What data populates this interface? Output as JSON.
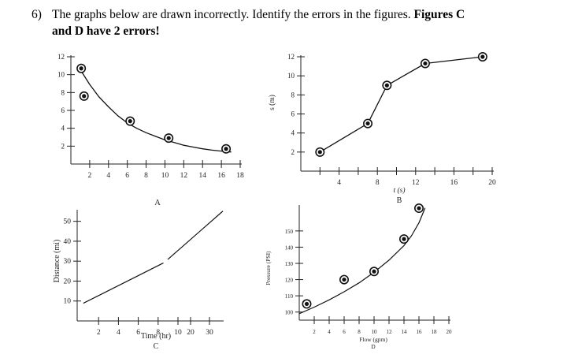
{
  "question": {
    "number": "6)",
    "text_plain": "The graphs below are drawn incorrectly. Identify the errors in the figures.",
    "text_bold_1": "Figures C",
    "text_bold_2": "and D have 2 errors!"
  },
  "chart_data": [
    {
      "id": "A",
      "type": "scatter",
      "title": "A",
      "xlabel": "",
      "ylabel": "",
      "xlim": [
        0,
        18
      ],
      "ylim": [
        0,
        12
      ],
      "x_ticks": [
        2,
        4,
        6,
        8,
        10,
        12,
        14,
        16,
        18
      ],
      "y_ticks": [
        2,
        4,
        6,
        8,
        10,
        12
      ],
      "points": [
        {
          "x": 1.1,
          "y": 10.7
        },
        {
          "x": 1.4,
          "y": 7.6
        },
        {
          "x": 6.3,
          "y": 4.8
        },
        {
          "x": 10.4,
          "y": 2.9
        },
        {
          "x": 16.5,
          "y": 1.7
        }
      ],
      "curve": [
        {
          "x": 1.1,
          "y": 10.4
        },
        {
          "x": 2,
          "y": 8.9
        },
        {
          "x": 3,
          "y": 7.5
        },
        {
          "x": 4,
          "y": 6.4
        },
        {
          "x": 5,
          "y": 5.4
        },
        {
          "x": 6,
          "y": 4.6
        },
        {
          "x": 7,
          "y": 4.0
        },
        {
          "x": 8,
          "y": 3.5
        },
        {
          "x": 9,
          "y": 3.1
        },
        {
          "x": 10,
          "y": 2.7
        },
        {
          "x": 11,
          "y": 2.4
        },
        {
          "x": 12,
          "y": 2.1
        },
        {
          "x": 13,
          "y": 1.9
        },
        {
          "x": 14,
          "y": 1.7
        },
        {
          "x": 15,
          "y": 1.55
        },
        {
          "x": 16,
          "y": 1.45
        },
        {
          "x": 17,
          "y": 1.35
        }
      ]
    },
    {
      "id": "B",
      "type": "line",
      "title": "B",
      "xlabel": "t (s)",
      "ylabel": "s (m)",
      "xlim": [
        0,
        20
      ],
      "ylim": [
        0,
        12
      ],
      "x_ticks": [
        2,
        4,
        6,
        8,
        10,
        12,
        14,
        16,
        18,
        20
      ],
      "x_tick_labels_shown": [
        4,
        8,
        12,
        16,
        20
      ],
      "y_ticks": [
        2,
        4,
        6,
        8,
        10,
        12
      ],
      "points": [
        {
          "x": 2,
          "y": 2
        },
        {
          "x": 7,
          "y": 5
        },
        {
          "x": 9,
          "y": 9
        },
        {
          "x": 13,
          "y": 11.3
        },
        {
          "x": 19,
          "y": 12
        }
      ]
    },
    {
      "id": "C",
      "type": "line",
      "title": "C",
      "xlabel": "Time (hr)",
      "ylabel": "Distance (mi)",
      "ylim": [
        0,
        55
      ],
      "x_tick_labels": [
        "2",
        "4",
        "6",
        "8",
        "10",
        "20",
        "30"
      ],
      "y_ticks": [
        10,
        20,
        30,
        40,
        50
      ],
      "segments": [
        [
          {
            "x": 0.5,
            "y": 9
          },
          {
            "x": 8.5,
            "y": 29
          }
        ],
        [
          {
            "x": 9.0,
            "y": 31
          },
          {
            "x": 14.5,
            "y": 55
          }
        ]
      ]
    },
    {
      "id": "D",
      "type": "scatter",
      "title": "D",
      "xlabel": "Flow (gpm)",
      "ylabel": "Pressure (PSI)",
      "xlim": [
        0,
        20
      ],
      "ylim": [
        95,
        165
      ],
      "x_ticks": [
        2,
        4,
        6,
        8,
        10,
        12,
        14,
        16,
        18,
        20
      ],
      "y_ticks": [
        100,
        110,
        120,
        130,
        140,
        150
      ],
      "points": [
        {
          "x": 1,
          "y": 105
        },
        {
          "x": 6,
          "y": 120
        },
        {
          "x": 10,
          "y": 125
        },
        {
          "x": 14,
          "y": 145
        },
        {
          "x": 16,
          "y": 164
        }
      ],
      "curve": [
        {
          "x": 0,
          "y": 99
        },
        {
          "x": 2,
          "y": 103
        },
        {
          "x": 4,
          "y": 107.5
        },
        {
          "x": 6,
          "y": 112.5
        },
        {
          "x": 8,
          "y": 118
        },
        {
          "x": 10,
          "y": 124.5
        },
        {
          "x": 12,
          "y": 132
        },
        {
          "x": 14,
          "y": 141
        },
        {
          "x": 15,
          "y": 147
        },
        {
          "x": 16,
          "y": 155
        },
        {
          "x": 16.8,
          "y": 164
        }
      ]
    }
  ]
}
